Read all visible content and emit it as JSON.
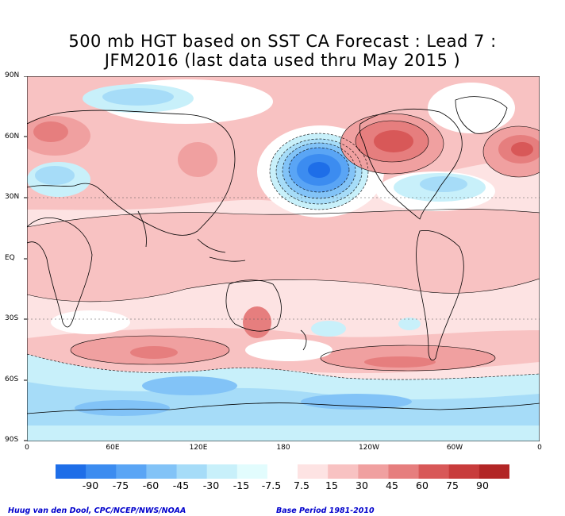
{
  "title": {
    "line1": "500 mb HGT based on SST CA Forecast : Lead 7 :",
    "line2": "JFM2016 (last data used thru May 2015 )"
  },
  "latitude_labels": [
    "90N",
    "60N",
    "30N",
    "EQ",
    "30S",
    "60S",
    "90S"
  ],
  "longitude_labels": [
    "0",
    "60E",
    "120E",
    "180",
    "120W",
    "60W",
    "0"
  ],
  "legend": {
    "labels": [
      "-90",
      "-75",
      "-60",
      "-45",
      "-30",
      "-15",
      "-7.5",
      "7.5",
      "15",
      "30",
      "45",
      "60",
      "75",
      "90"
    ],
    "colors": [
      "#1e6ee8",
      "#3c8cf0",
      "#5aa5f5",
      "#82c3f7",
      "#a6dcf8",
      "#c8f0fa",
      "#e2fcfd",
      "#ffffff",
      "#fde3e3",
      "#f8c2c2",
      "#f0a0a0",
      "#e67e7e",
      "#d85858",
      "#c83c3c",
      "#b22626"
    ]
  },
  "footer": {
    "left": "Huug van den Dool, CPC/NCEP/NWS/NOAA",
    "right": "Base Period 1981-2010"
  }
}
